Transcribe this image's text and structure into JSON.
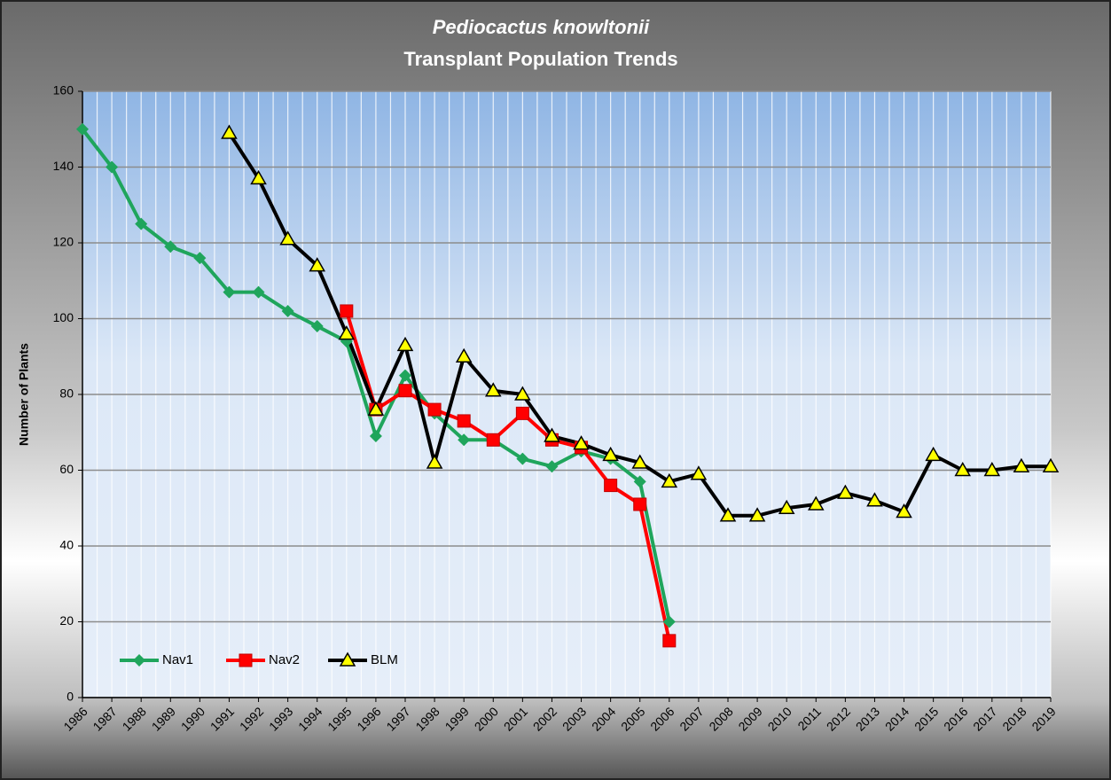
{
  "chart_data": {
    "type": "line",
    "title": "Pediocactus knowltonii",
    "subtitle": "Transplant Population Trends",
    "y_label": "Number of Plants",
    "categories": [
      "1986",
      "1987",
      "1988",
      "1989",
      "1990",
      "1991",
      "1992",
      "1993",
      "1994",
      "1995",
      "1996",
      "1997",
      "1998",
      "1999",
      "2000",
      "2001",
      "2002",
      "2003",
      "2004",
      "2005",
      "2006",
      "2007",
      "2008",
      "2009",
      "2010",
      "2011",
      "2012",
      "2013",
      "2014",
      "2015",
      "2016",
      "2017",
      "2018",
      "2019"
    ],
    "series": [
      {
        "name": "Nav1",
        "color": "#1fa55c",
        "marker": "diamond",
        "marker_color": "#1fa55c",
        "values": [
          150,
          140,
          125,
          119,
          116,
          107,
          107,
          102,
          98,
          94,
          69,
          85,
          75,
          68,
          68,
          63,
          61,
          65,
          63,
          57,
          20,
          null,
          null,
          null,
          null,
          null,
          null,
          null,
          null,
          null,
          null,
          null,
          null,
          null
        ]
      },
      {
        "name": "Nav2",
        "color": "#ff0000",
        "marker": "square",
        "marker_color": "#ff0000",
        "values": [
          null,
          null,
          null,
          null,
          null,
          null,
          null,
          null,
          null,
          102,
          76,
          81,
          76,
          73,
          68,
          75,
          68,
          66,
          56,
          51,
          15,
          null,
          null,
          null,
          null,
          null,
          null,
          null,
          null,
          null,
          null,
          null,
          null,
          null
        ]
      },
      {
        "name": "BLM",
        "color": "#000000",
        "marker": "triangle",
        "marker_color": "#ffff00",
        "values": [
          null,
          null,
          null,
          null,
          null,
          149,
          137,
          121,
          114,
          96,
          76,
          93,
          62,
          90,
          81,
          80,
          69,
          67,
          64,
          62,
          57,
          59,
          48,
          48,
          50,
          51,
          54,
          52,
          49,
          64,
          60,
          60,
          61,
          61
        ]
      }
    ],
    "ylim": [
      0,
      160
    ],
    "yticks": [
      0,
      20,
      40,
      60,
      80,
      100,
      120,
      140,
      160
    ],
    "grid": true,
    "legend": "lower left"
  }
}
